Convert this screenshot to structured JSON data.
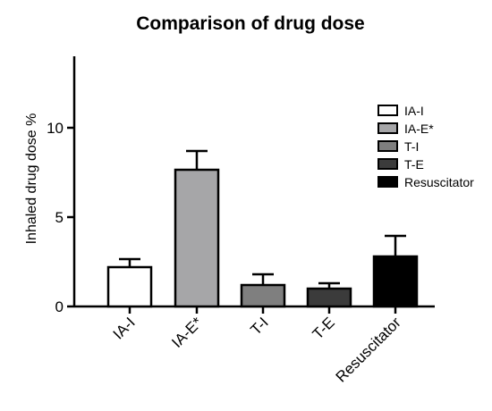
{
  "chart_data": {
    "type": "bar",
    "title": "Comparison of drug dose",
    "ylabel": "Inhaled drug dose %",
    "xlabel": "",
    "ylim": [
      0,
      14
    ],
    "yticks": [
      0,
      5,
      10
    ],
    "grid": false,
    "legend_position": "right",
    "categories": [
      "IA-I",
      "IA-E*",
      "T-I",
      "T-E",
      "Resuscitator"
    ],
    "values": [
      2.2,
      7.65,
      1.2,
      1.0,
      2.8
    ],
    "error_upper": [
      0.45,
      1.05,
      0.6,
      0.3,
      1.15
    ],
    "colors": [
      "#ffffff",
      "#a6a6a8",
      "#7f7f7f",
      "#3b3b3b",
      "#000000"
    ],
    "legend": [
      "IA-I",
      "IA-E*",
      "T-I",
      "T-E",
      "Resuscitator"
    ]
  }
}
